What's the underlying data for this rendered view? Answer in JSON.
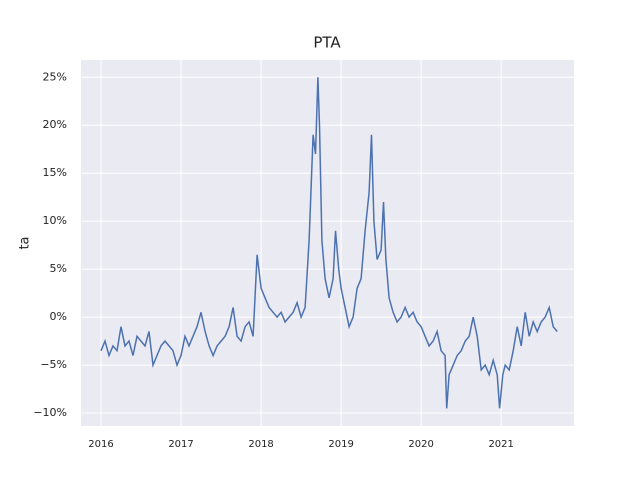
{
  "chart_data": {
    "type": "line",
    "title": "PTA",
    "y_label": "ta",
    "x": [
      2016.0,
      2016.05,
      2016.1,
      2016.15,
      2016.2,
      2016.25,
      2016.3,
      2016.35,
      2016.4,
      2016.45,
      2016.5,
      2016.55,
      2016.6,
      2016.65,
      2016.7,
      2016.75,
      2016.8,
      2016.85,
      2016.9,
      2016.95,
      2017.0,
      2017.05,
      2017.1,
      2017.15,
      2017.2,
      2017.25,
      2017.3,
      2017.35,
      2017.4,
      2017.45,
      2017.5,
      2017.55,
      2017.6,
      2017.65,
      2017.7,
      2017.75,
      2017.8,
      2017.85,
      2017.9,
      2017.95,
      2018.0,
      2018.05,
      2018.1,
      2018.15,
      2018.2,
      2018.25,
      2018.3,
      2018.35,
      2018.4,
      2018.45,
      2018.5,
      2018.55,
      2018.6,
      2018.65,
      2018.68,
      2018.71,
      2018.73,
      2018.76,
      2018.8,
      2018.85,
      2018.9,
      2018.93,
      2018.97,
      2019.0,
      2019.05,
      2019.1,
      2019.15,
      2019.2,
      2019.25,
      2019.3,
      2019.35,
      2019.38,
      2019.41,
      2019.45,
      2019.5,
      2019.53,
      2019.56,
      2019.6,
      2019.65,
      2019.7,
      2019.75,
      2019.8,
      2019.85,
      2019.9,
      2019.95,
      2020.0,
      2020.05,
      2020.1,
      2020.15,
      2020.2,
      2020.25,
      2020.3,
      2020.32,
      2020.35,
      2020.4,
      2020.45,
      2020.5,
      2020.55,
      2020.6,
      2020.65,
      2020.7,
      2020.75,
      2020.8,
      2020.85,
      2020.9,
      2020.95,
      2020.98,
      2021.02,
      2021.05,
      2021.1,
      2021.15,
      2021.2,
      2021.25,
      2021.3,
      2021.35,
      2021.4,
      2021.45,
      2021.5,
      2021.55,
      2021.6,
      2021.65,
      2021.7
    ],
    "series": [
      {
        "name": "ta",
        "color": "#4c72b0",
        "values": [
          -3.5,
          -2.5,
          -4,
          -3,
          -3.5,
          -1,
          -3,
          -2.5,
          -4,
          -2,
          -2.5,
          -3,
          -1.5,
          -5,
          -4,
          -3,
          -2.5,
          -3,
          -3.5,
          -5,
          -4,
          -2,
          -3,
          -2,
          -1,
          0.5,
          -1.5,
          -3,
          -4,
          -3,
          -2.5,
          -2,
          -1,
          1,
          -2,
          -2.5,
          -1,
          -0.5,
          -2,
          6.5,
          3,
          2,
          1,
          0.5,
          0,
          0.5,
          -0.5,
          0,
          0.5,
          1.5,
          0,
          1,
          8,
          19,
          17,
          25,
          20,
          8,
          4,
          2,
          4,
          9,
          5,
          3,
          1,
          -1,
          0,
          3,
          4,
          9,
          13,
          19,
          10,
          6,
          7,
          12,
          6,
          2,
          0.5,
          -0.5,
          0,
          1,
          0,
          0.5,
          -0.5,
          -1,
          -2,
          -3,
          -2.5,
          -1.5,
          -3.5,
          -4,
          -9.5,
          -6,
          -5,
          -4,
          -3.5,
          -2.5,
          -2,
          0,
          -2,
          -5.5,
          -5,
          -6,
          -4.5,
          -6,
          -9.5,
          -6,
          -5,
          -5.5,
          -3.5,
          -1,
          -3,
          0.5,
          -2,
          -0.5,
          -1.5,
          -0.5,
          0,
          1,
          -1,
          -1.5
        ]
      }
    ],
    "xlim": [
      2015.75,
      2021.91
    ],
    "xticks": [
      2016,
      2017,
      2018,
      2019,
      2020,
      2021
    ],
    "ylim": [
      -11.35,
      26.8
    ],
    "yticks": [
      {
        "value": -10,
        "label": "−10%"
      },
      {
        "value": -5,
        "label": "−5%"
      },
      {
        "value": 0,
        "label": "0%"
      },
      {
        "value": 5,
        "label": "5%"
      },
      {
        "value": 10,
        "label": "10%"
      },
      {
        "value": 15,
        "label": "15%"
      },
      {
        "value": 20,
        "label": "20%"
      },
      {
        "value": 25,
        "label": "25%"
      }
    ],
    "grid": true
  }
}
